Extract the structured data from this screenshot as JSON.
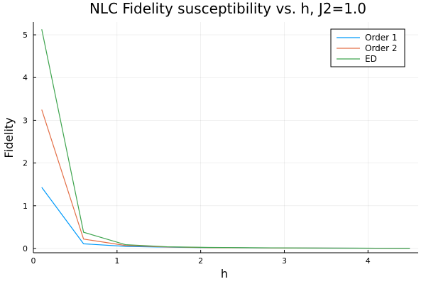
{
  "chart_data": {
    "type": "line",
    "title": "NLC Fidelity susceptibility vs. h, J2=1.0",
    "xlabel": "h",
    "ylabel": "Fidelity",
    "xlim": [
      0,
      4.6
    ],
    "ylim": [
      -0.1,
      5.3
    ],
    "xticks": [
      0,
      1,
      2,
      3,
      4
    ],
    "yticks": [
      0,
      1,
      2,
      3,
      4,
      5
    ],
    "grid": true,
    "legend_position": "top-right",
    "x": [
      0.1,
      0.6,
      1.1,
      1.6,
      2.1,
      2.6,
      3.1,
      3.6,
      4.1,
      4.5
    ],
    "series": [
      {
        "name": "Order 1",
        "color": "#009AFA",
        "values": [
          1.43,
          0.11,
          0.05,
          0.03,
          0.02,
          0.015,
          0.01,
          0.008,
          0.006,
          0.005
        ]
      },
      {
        "name": "Order 2",
        "color": "#E36F47",
        "values": [
          3.25,
          0.22,
          0.07,
          0.035,
          0.02,
          0.015,
          0.01,
          0.008,
          0.006,
          0.005
        ]
      },
      {
        "name": "ED",
        "color": "#3EA44E",
        "values": [
          5.13,
          0.38,
          0.09,
          0.04,
          0.025,
          0.018,
          0.012,
          0.009,
          0.007,
          0.006
        ]
      }
    ]
  }
}
